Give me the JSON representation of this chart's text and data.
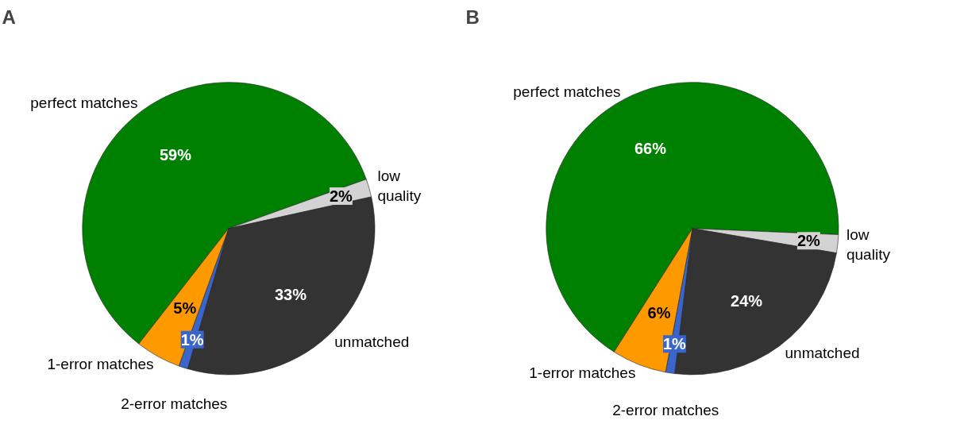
{
  "chart_data": [
    {
      "type": "pie",
      "title": "A",
      "categories": [
        "perfect matches",
        "low\nquality",
        "unmatched",
        "2-error matches",
        "1-error matches"
      ],
      "values": [
        59,
        2,
        33,
        1,
        5
      ],
      "value_labels": [
        "59%",
        "2%",
        "33%",
        "1%",
        "5%"
      ],
      "colors": [
        "#008000",
        "#d3d3d3",
        "#333333",
        "#3a66cc",
        "#ff9900"
      ]
    },
    {
      "type": "pie",
      "title": "B",
      "categories": [
        "perfect matches",
        "low\nquality",
        "unmatched",
        "2-error matches",
        "1-error matches"
      ],
      "values": [
        66,
        2,
        24,
        1,
        6
      ],
      "value_labels": [
        "66%",
        "2%",
        "24%",
        "1%",
        "6%"
      ],
      "colors": [
        "#008000",
        "#d3d3d3",
        "#333333",
        "#3a66cc",
        "#ff9900"
      ]
    }
  ]
}
